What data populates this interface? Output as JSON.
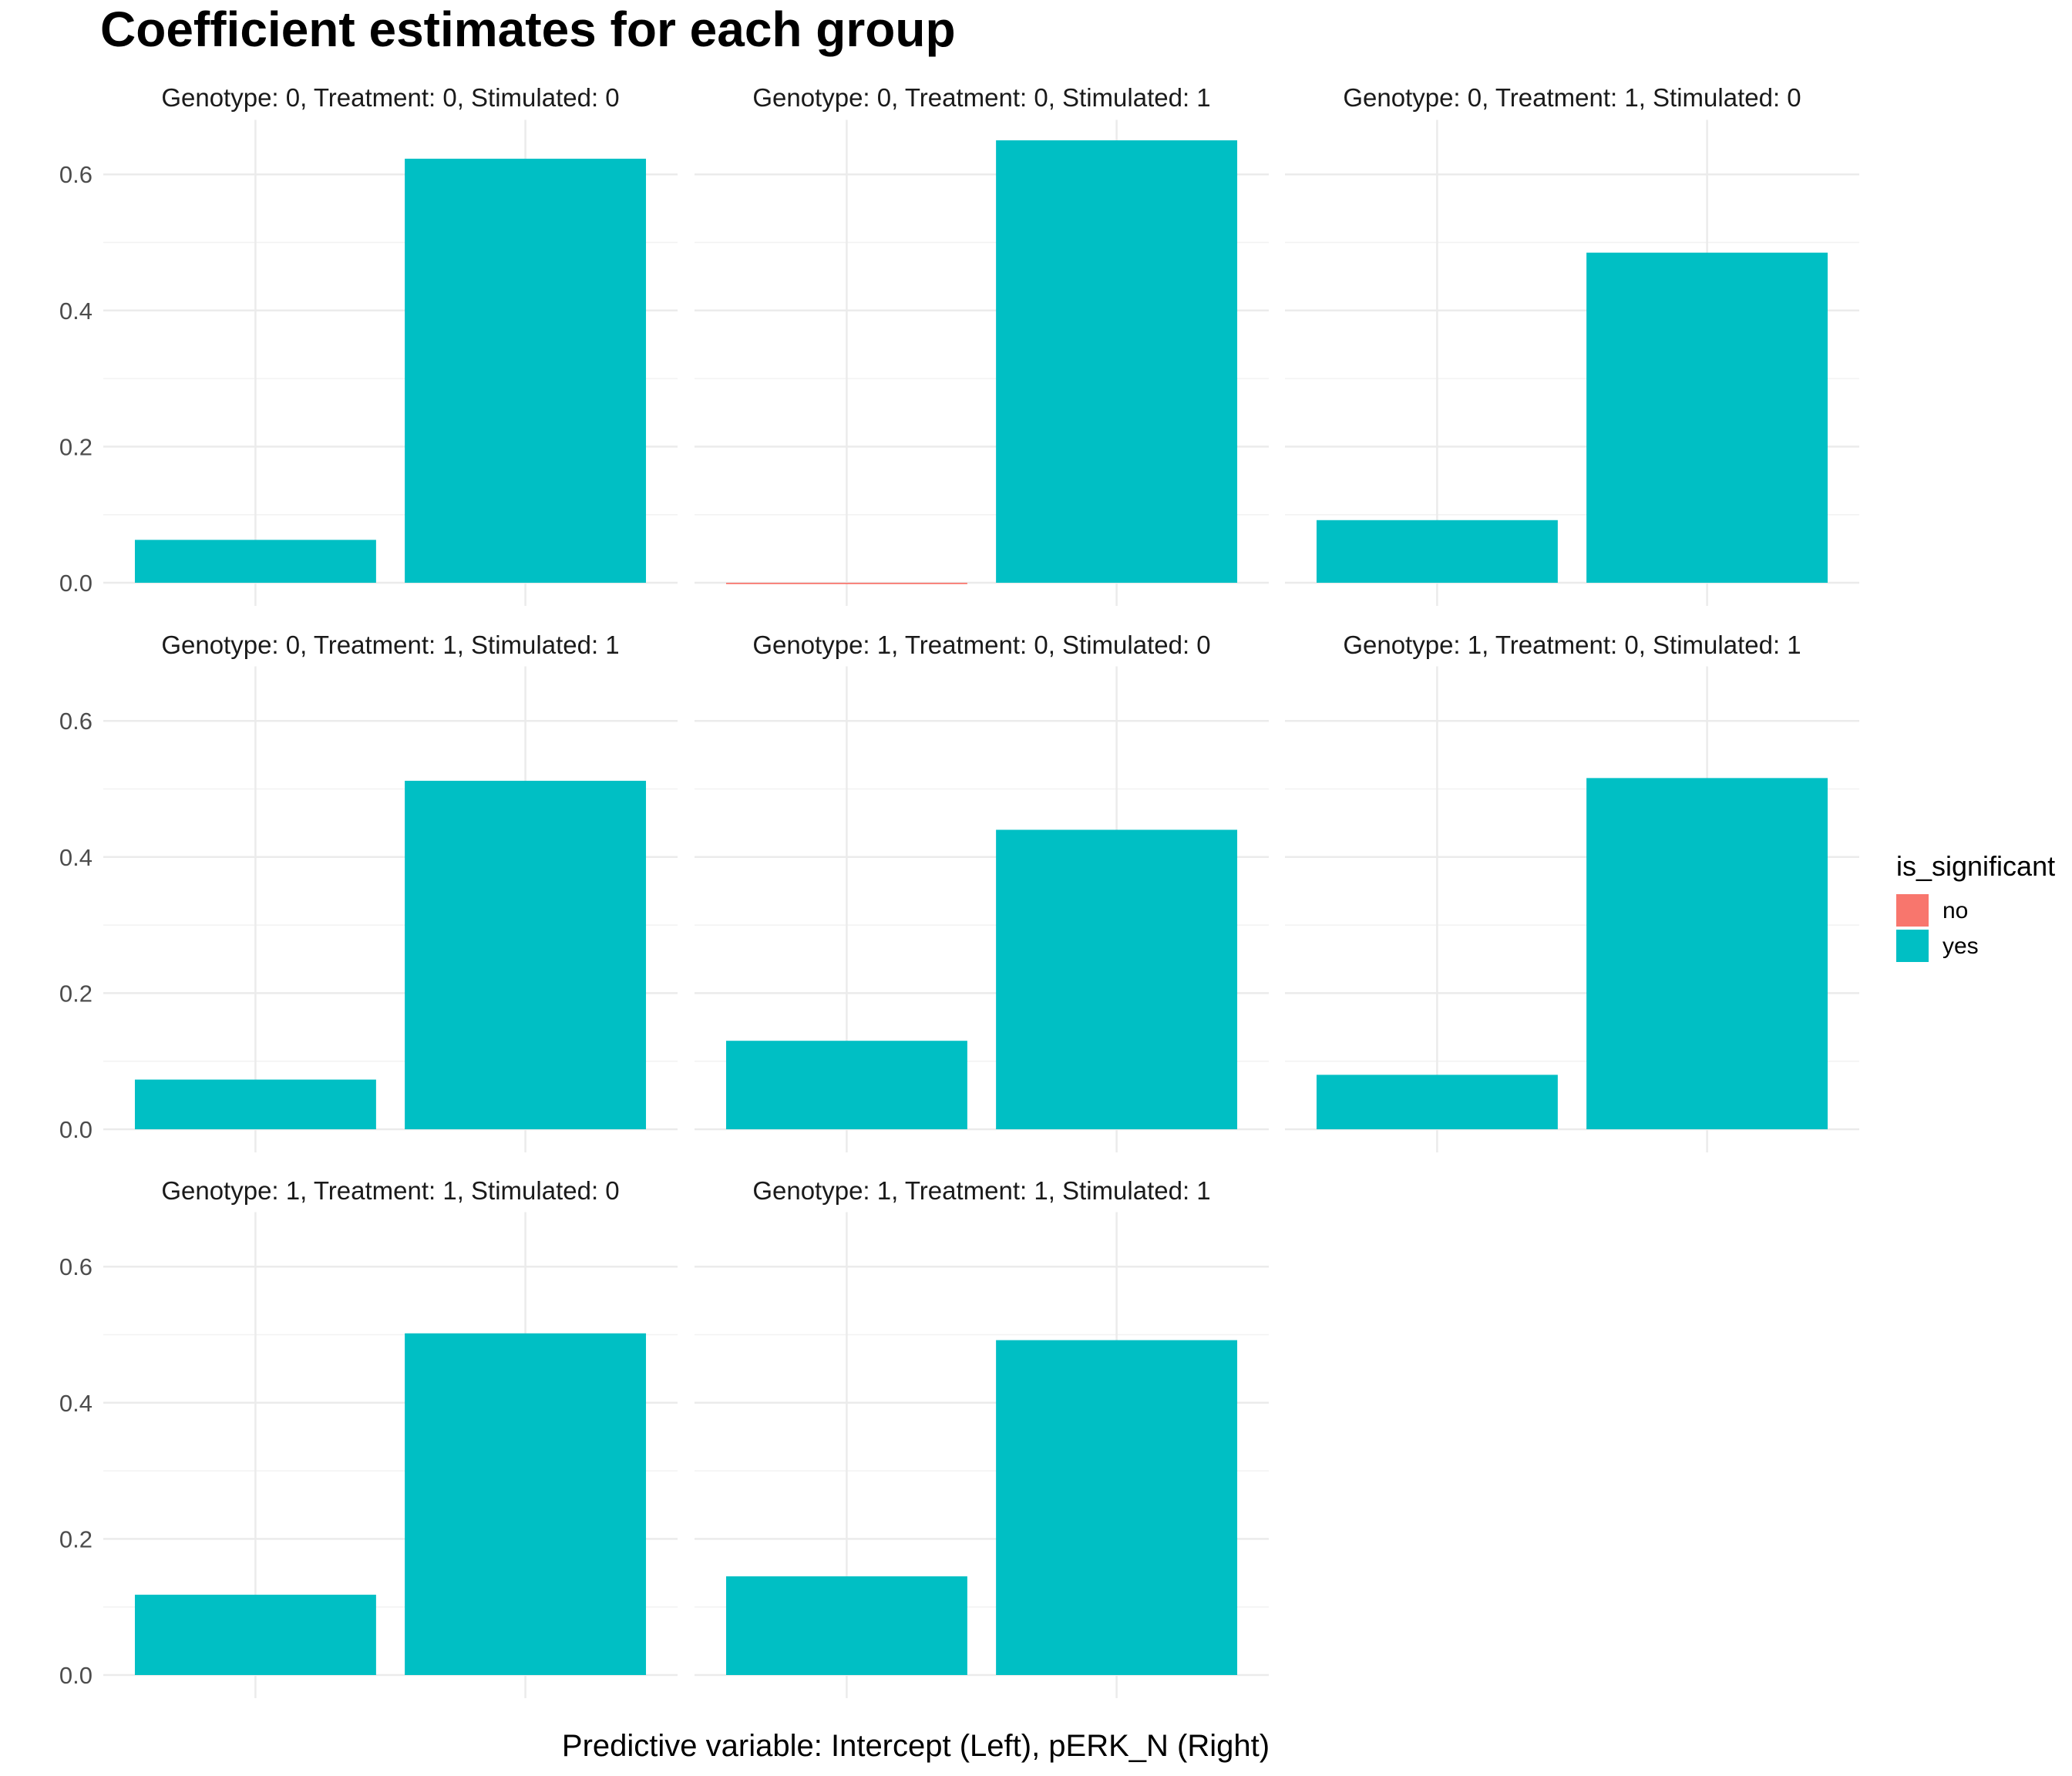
{
  "chart_data": {
    "type": "bar",
    "title": "Coefficient estimates for each group",
    "xlabel": "Predictive variable: Intercept (Left), pERK_N (Right)",
    "ylabel": "",
    "ylim": [
      0,
      0.68
    ],
    "yticks": [
      "0.0",
      "0.2",
      "0.4",
      "0.6"
    ],
    "grid": true,
    "legend": {
      "title": "is_significant",
      "placement": "right",
      "entries": [
        {
          "label": "no",
          "color": "#F8766D"
        },
        {
          "label": "yes",
          "color": "#00BFC4"
        }
      ]
    },
    "categories": [
      "Intercept",
      "pERK_N"
    ],
    "panels": [
      {
        "label": "Genotype: 0, Treatment: 0, Stimulated: 0",
        "values": [
          0.063,
          0.623
        ],
        "significant": [
          "yes",
          "yes"
        ]
      },
      {
        "label": "Genotype: 0, Treatment: 0, Stimulated: 1",
        "values": [
          -0.002,
          0.65
        ],
        "significant": [
          "no",
          "yes"
        ]
      },
      {
        "label": "Genotype: 0, Treatment: 1, Stimulated: 0",
        "values": [
          0.092,
          0.485
        ],
        "significant": [
          "yes",
          "yes"
        ]
      },
      {
        "label": "Genotype: 0, Treatment: 1, Stimulated: 1",
        "values": [
          0.073,
          0.512
        ],
        "significant": [
          "yes",
          "yes"
        ]
      },
      {
        "label": "Genotype: 1, Treatment: 0, Stimulated: 0",
        "values": [
          0.13,
          0.44
        ],
        "significant": [
          "yes",
          "yes"
        ]
      },
      {
        "label": "Genotype: 1, Treatment: 0, Stimulated: 1",
        "values": [
          0.08,
          0.516
        ],
        "significant": [
          "yes",
          "yes"
        ]
      },
      {
        "label": "Genotype: 1, Treatment: 1, Stimulated: 0",
        "values": [
          0.118,
          0.502
        ],
        "significant": [
          "yes",
          "yes"
        ]
      },
      {
        "label": "Genotype: 1, Treatment: 1, Stimulated: 1",
        "values": [
          0.145,
          0.492
        ],
        "significant": [
          "yes",
          "yes"
        ]
      }
    ]
  }
}
